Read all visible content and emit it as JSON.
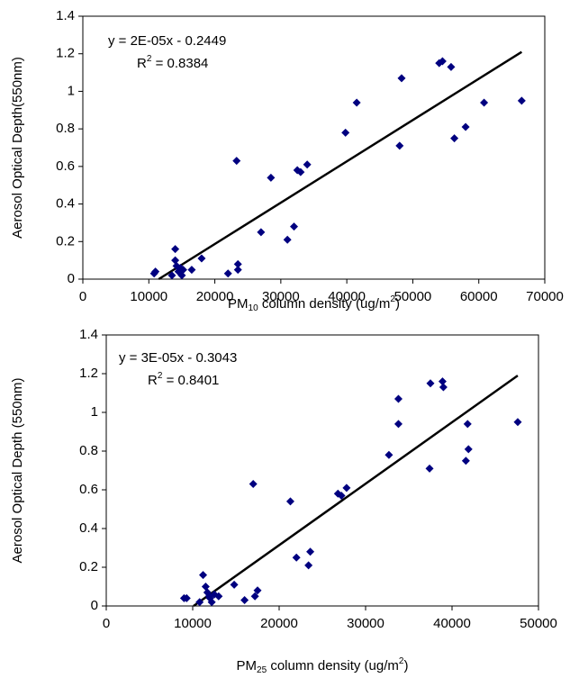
{
  "chart_data": [
    {
      "type": "scatter",
      "color": "#000080",
      "ylabel": "Aerosol Optical Depth(550nm)",
      "xlabel": {
        "text": "PM",
        "sub": "10",
        "rest": " column density (ug/m",
        "sup": "2",
        "end": ")"
      },
      "equation": "y = 2E-05x - 0.2449",
      "r_squared": {
        "base": "R",
        "sup": "2",
        "text": " = 0.8384"
      },
      "x": [
        11000,
        10800,
        13500,
        14000,
        14000,
        14200,
        14500,
        15000,
        15200,
        14800,
        16500,
        18000,
        22000,
        23500,
        23500,
        23300,
        27000,
        28500,
        31000,
        32000,
        32500,
        33000,
        34000,
        39800,
        41500,
        48000,
        48300,
        54000,
        54500,
        55800,
        56300,
        58000,
        60800,
        66500
      ],
      "values": [
        0.04,
        0.03,
        0.02,
        0.16,
        0.1,
        0.07,
        0.04,
        0.02,
        0.05,
        0.06,
        0.05,
        0.11,
        0.03,
        0.08,
        0.05,
        0.63,
        0.25,
        0.54,
        0.21,
        0.28,
        0.58,
        0.57,
        0.61,
        0.78,
        0.94,
        0.71,
        1.07,
        1.15,
        1.16,
        1.13,
        0.75,
        0.81,
        0.94,
        0.95
      ],
      "trendline": {
        "x": [
          11500,
          66500
        ],
        "y": [
          0,
          1.21
        ],
        "color": "#000000"
      },
      "xlim": [
        0,
        70000
      ],
      "xticks": [
        0,
        10000,
        20000,
        30000,
        40000,
        50000,
        60000,
        70000
      ],
      "ylim": [
        0,
        1.4
      ],
      "yticks": [
        0,
        0.2,
        0.4,
        0.6,
        0.8,
        1,
        1.2,
        1.4
      ]
    },
    {
      "type": "scatter",
      "color": "#000080",
      "ylabel": "Aerosol Optical Depth (550nm)",
      "xlabel": {
        "text": "PM",
        "sub": "25",
        "rest": " column density (ug/m",
        "sup": "2",
        "end": ")"
      },
      "equation": "y = 3E-05x - 0.3043",
      "r_squared": {
        "base": "R",
        "sup": "2",
        "text": " = 0.8401"
      },
      "x": [
        9000,
        9300,
        10800,
        11200,
        11500,
        11700,
        12000,
        12200,
        11900,
        12500,
        13000,
        14800,
        16000,
        17200,
        17500,
        17000,
        22000,
        21300,
        23400,
        23600,
        26800,
        27200,
        27800,
        32700,
        33800,
        33800,
        37400,
        37500,
        38900,
        39000,
        41600,
        41900,
        41800,
        47600
      ],
      "values": [
        0.04,
        0.04,
        0.02,
        0.16,
        0.1,
        0.07,
        0.04,
        0.02,
        0.05,
        0.06,
        0.05,
        0.11,
        0.03,
        0.05,
        0.08,
        0.63,
        0.25,
        0.54,
        0.21,
        0.28,
        0.58,
        0.57,
        0.61,
        0.78,
        0.94,
        1.07,
        0.71,
        1.15,
        1.16,
        1.13,
        0.75,
        0.81,
        0.94,
        0.95
      ],
      "trendline": {
        "x": [
          10100,
          47600
        ],
        "y": [
          0,
          1.19
        ],
        "color": "#000000"
      },
      "xlim": [
        0,
        50000
      ],
      "xticks": [
        0,
        10000,
        20000,
        30000,
        40000,
        50000
      ],
      "ylim": [
        0,
        1.4
      ],
      "yticks": [
        0,
        0.2,
        0.4,
        0.6,
        0.8,
        1,
        1.2,
        1.4
      ]
    }
  ]
}
